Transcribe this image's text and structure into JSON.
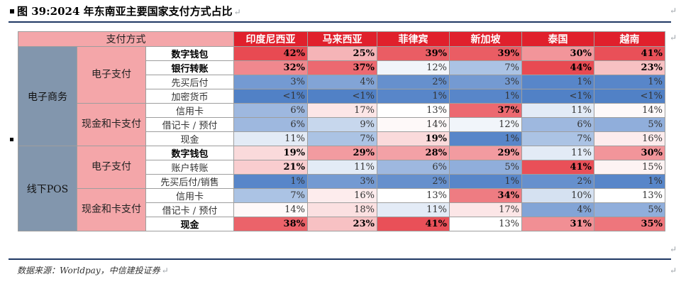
{
  "title": "图 39:2024 年东南亚主要国家支付方式占比",
  "source": "数据来源：Worldpay，中信建投证券",
  "header": {
    "corner": "支付方式",
    "countries": [
      "印度尼西亚",
      "马来西亚",
      "菲律宾",
      "新加坡",
      "泰国",
      "越南"
    ]
  },
  "colors": {
    "header_country": "#e0202c",
    "header_corner": "#f4a6a9",
    "category_primary": "#8296ad",
    "category_secondary": "#f4a6a9",
    "rule": "#1f3864"
  },
  "groups": [
    {
      "name": "电子商务",
      "subgroups": [
        {
          "name": "电子支付",
          "rows": [
            {
              "item": "数字钱包",
              "bold": true,
              "values": [
                "42%",
                "25%",
                "39%",
                "39%",
                "30%",
                "41%"
              ],
              "bold_values": [
                true,
                true,
                true,
                true,
                true,
                true
              ]
            },
            {
              "item": "银行转账",
              "bold": true,
              "values": [
                "32%",
                "37%",
                "12%",
                "7%",
                "44%",
                "23%"
              ],
              "bold_values": [
                true,
                true,
                false,
                false,
                true,
                true
              ]
            },
            {
              "item": "先买后付",
              "bold": false,
              "values": [
                "3%",
                "4%",
                "2%",
                "3%",
                "1%",
                "1%"
              ],
              "bold_values": [
                false,
                false,
                false,
                false,
                false,
                false
              ]
            },
            {
              "item": "加密货币",
              "bold": false,
              "values": [
                "<1%",
                "<1%",
                "1%",
                "1%",
                "<1%",
                "<1%"
              ],
              "bold_values": [
                false,
                false,
                false,
                false,
                false,
                false
              ]
            }
          ]
        },
        {
          "name": "现金和卡支付",
          "rows": [
            {
              "item": "信用卡",
              "bold": false,
              "values": [
                "6%",
                "17%",
                "13%",
                "37%",
                "11%",
                "14%"
              ],
              "bold_values": [
                false,
                false,
                false,
                true,
                false,
                false
              ]
            },
            {
              "item": "借记卡 / 预付",
              "bold": false,
              "values": [
                "6%",
                "9%",
                "14%",
                "12%",
                "6%",
                "5%"
              ],
              "bold_values": [
                false,
                false,
                false,
                false,
                false,
                false
              ]
            },
            {
              "item": "现金",
              "bold": false,
              "values": [
                "11%",
                "7%",
                "19%",
                "1%",
                "7%",
                "16%"
              ],
              "bold_values": [
                false,
                false,
                true,
                false,
                false,
                false
              ]
            }
          ]
        }
      ]
    },
    {
      "name": "线下POS",
      "subgroups": [
        {
          "name": "电子支付",
          "rows": [
            {
              "item": "数字钱包",
              "bold": true,
              "values": [
                "19%",
                "29%",
                "28%",
                "29%",
                "11%",
                "30%"
              ],
              "bold_values": [
                true,
                true,
                true,
                true,
                false,
                true
              ]
            },
            {
              "item": "账户转账",
              "bold": false,
              "values": [
                "21%",
                "11%",
                "6%",
                "5%",
                "41%",
                "15%"
              ],
              "bold_values": [
                true,
                false,
                false,
                false,
                true,
                false
              ]
            },
            {
              "item": "先买后付/销售",
              "bold": false,
              "values": [
                "1%",
                "3%",
                "2%",
                "1%",
                "2%",
                "1%"
              ],
              "bold_values": [
                false,
                false,
                false,
                false,
                false,
                false
              ]
            }
          ]
        },
        {
          "name": "现金和卡支付",
          "rows": [
            {
              "item": "信用卡",
              "bold": false,
              "values": [
                "7%",
                "16%",
                "13%",
                "34%",
                "10%",
                "13%"
              ],
              "bold_values": [
                false,
                false,
                false,
                true,
                false,
                false
              ]
            },
            {
              "item": "借记卡 / 预付",
              "bold": false,
              "values": [
                "14%",
                "18%",
                "11%",
                "17%",
                "4%",
                "5%"
              ],
              "bold_values": [
                false,
                false,
                false,
                false,
                false,
                false
              ]
            },
            {
              "item": "现金",
              "bold": true,
              "values": [
                "38%",
                "23%",
                "41%",
                "13%",
                "31%",
                "35%"
              ],
              "bold_values": [
                true,
                true,
                true,
                false,
                true,
                true
              ]
            }
          ]
        }
      ]
    }
  ]
}
